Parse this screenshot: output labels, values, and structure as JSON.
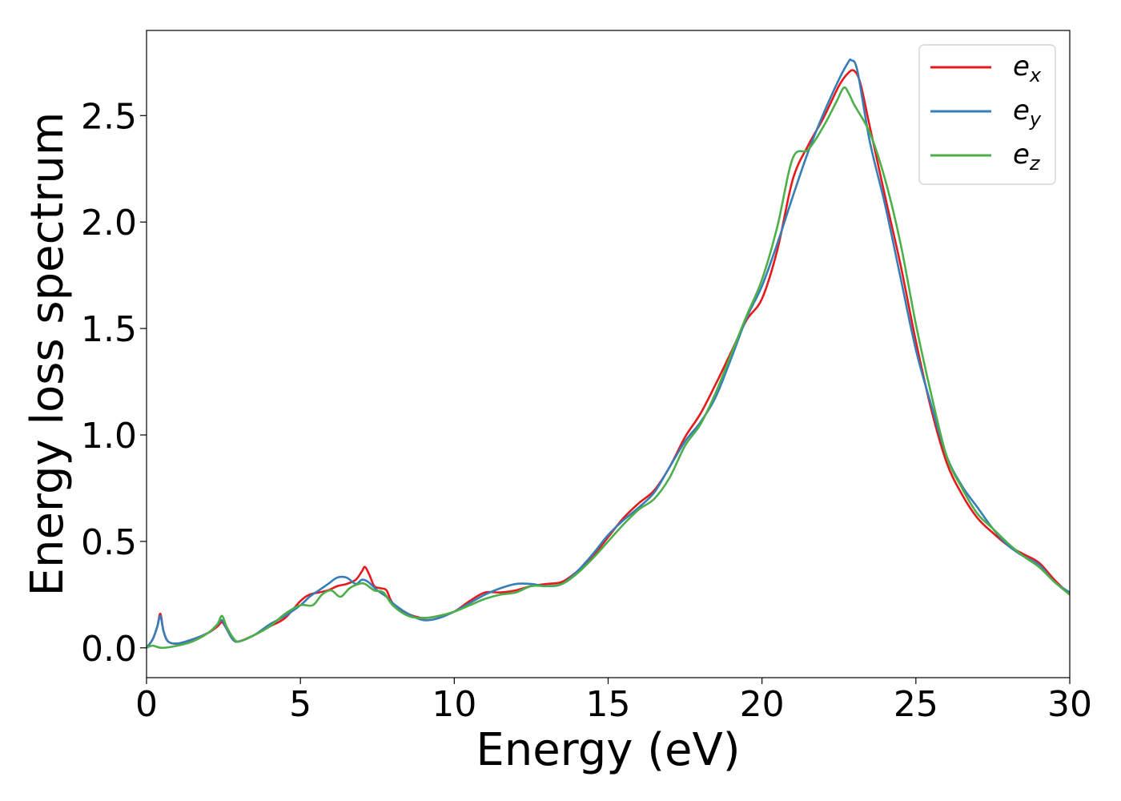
{
  "chart_data": {
    "type": "line",
    "title": "",
    "xlabel": "Energy (eV)",
    "ylabel": "Energy loss spectrum",
    "xlim": [
      0,
      30
    ],
    "ylim": [
      -0.14,
      2.9
    ],
    "xticks": [
      0,
      5,
      10,
      15,
      20,
      25,
      30
    ],
    "xtick_labels": [
      "0",
      "5",
      "10",
      "15",
      "20",
      "25",
      "30"
    ],
    "yticks": [
      0.0,
      0.5,
      1.0,
      1.5,
      2.0,
      2.5
    ],
    "ytick_labels": [
      "0.0",
      "0.5",
      "1.0",
      "1.5",
      "2.0",
      "2.5"
    ],
    "grid": false,
    "legend_position": "top-right",
    "series": [
      {
        "name": "e_x",
        "legend_base": "e",
        "legend_sub": "x",
        "color": "#e41a1c",
        "x": [
          0,
          0.2,
          0.35,
          0.45,
          0.55,
          0.7,
          1.0,
          1.5,
          2.0,
          2.3,
          2.45,
          2.6,
          2.8,
          3.0,
          3.5,
          4.0,
          4.5,
          5.0,
          5.3,
          5.6,
          5.9,
          6.2,
          6.5,
          6.8,
          7.0,
          7.1,
          7.25,
          7.4,
          7.6,
          7.8,
          8.0,
          8.5,
          9.0,
          9.5,
          10.0,
          10.5,
          11.0,
          11.5,
          12.0,
          12.5,
          13.0,
          13.5,
          14.0,
          14.5,
          15.0,
          15.5,
          16.0,
          16.5,
          17.0,
          17.5,
          18.0,
          18.5,
          19.0,
          19.5,
          20.0,
          20.5,
          21.0,
          21.5,
          22.0,
          22.5,
          22.8,
          23.0,
          23.2,
          23.5,
          24.0,
          24.5,
          25.0,
          25.5,
          26.0,
          26.5,
          27.0,
          27.5,
          28.0,
          28.5,
          29.0,
          29.5,
          30.0
        ],
        "y": [
          0.0,
          0.04,
          0.1,
          0.16,
          0.08,
          0.03,
          0.02,
          0.04,
          0.07,
          0.1,
          0.12,
          0.09,
          0.04,
          0.03,
          0.06,
          0.1,
          0.14,
          0.22,
          0.25,
          0.26,
          0.27,
          0.29,
          0.3,
          0.32,
          0.36,
          0.38,
          0.34,
          0.29,
          0.28,
          0.27,
          0.21,
          0.16,
          0.14,
          0.15,
          0.17,
          0.22,
          0.26,
          0.26,
          0.27,
          0.29,
          0.3,
          0.31,
          0.36,
          0.43,
          0.52,
          0.61,
          0.68,
          0.74,
          0.85,
          0.99,
          1.1,
          1.24,
          1.39,
          1.54,
          1.64,
          1.87,
          2.2,
          2.36,
          2.49,
          2.64,
          2.7,
          2.71,
          2.65,
          2.45,
          2.12,
          1.8,
          1.44,
          1.12,
          0.87,
          0.72,
          0.61,
          0.54,
          0.48,
          0.44,
          0.4,
          0.32,
          0.25
        ]
      },
      {
        "name": "e_y",
        "legend_base": "e",
        "legend_sub": "y",
        "color": "#377eb8",
        "x": [
          0,
          0.2,
          0.35,
          0.45,
          0.55,
          0.7,
          1.0,
          1.5,
          2.0,
          2.3,
          2.45,
          2.6,
          2.8,
          3.0,
          3.5,
          4.0,
          4.5,
          5.0,
          5.3,
          5.6,
          5.9,
          6.2,
          6.5,
          6.8,
          7.0,
          7.2,
          7.5,
          7.8,
          8.0,
          8.5,
          9.0,
          9.5,
          10.0,
          10.5,
          11.0,
          11.5,
          12.0,
          12.5,
          13.0,
          13.5,
          14.0,
          14.5,
          15.0,
          15.5,
          16.0,
          16.5,
          17.0,
          17.5,
          18.0,
          18.5,
          19.0,
          19.5,
          20.0,
          20.5,
          21.0,
          21.5,
          22.0,
          22.5,
          22.8,
          22.9,
          23.1,
          23.5,
          24.0,
          24.5,
          25.0,
          25.5,
          26.0,
          26.5,
          27.0,
          27.5,
          28.0,
          28.5,
          29.0,
          29.5,
          30.0
        ],
        "y": [
          0.0,
          0.04,
          0.1,
          0.15,
          0.08,
          0.03,
          0.02,
          0.04,
          0.07,
          0.11,
          0.13,
          0.09,
          0.04,
          0.03,
          0.06,
          0.11,
          0.15,
          0.2,
          0.24,
          0.27,
          0.3,
          0.33,
          0.33,
          0.3,
          0.32,
          0.31,
          0.27,
          0.24,
          0.21,
          0.16,
          0.13,
          0.14,
          0.17,
          0.21,
          0.25,
          0.28,
          0.3,
          0.3,
          0.29,
          0.3,
          0.36,
          0.44,
          0.53,
          0.6,
          0.66,
          0.73,
          0.85,
          0.97,
          1.06,
          1.18,
          1.36,
          1.55,
          1.7,
          1.9,
          2.12,
          2.33,
          2.51,
          2.67,
          2.75,
          2.76,
          2.71,
          2.38,
          2.08,
          1.74,
          1.4,
          1.14,
          0.9,
          0.76,
          0.66,
          0.56,
          0.48,
          0.43,
          0.39,
          0.31,
          0.26
        ]
      },
      {
        "name": "e_z",
        "legend_base": "e",
        "legend_sub": "z",
        "color": "#4daf4a",
        "x": [
          0,
          0.2,
          0.5,
          1.0,
          1.5,
          2.0,
          2.3,
          2.45,
          2.6,
          2.8,
          3.0,
          3.5,
          4.0,
          4.5,
          5.0,
          5.4,
          5.7,
          6.0,
          6.3,
          6.6,
          6.9,
          7.1,
          7.4,
          7.7,
          8.0,
          8.5,
          9.0,
          9.5,
          10.0,
          10.5,
          11.0,
          11.5,
          12.0,
          12.5,
          13.0,
          13.5,
          14.0,
          14.5,
          15.0,
          15.5,
          16.0,
          16.5,
          17.0,
          17.5,
          18.0,
          18.5,
          19.0,
          19.5,
          20.0,
          20.5,
          21.0,
          21.5,
          22.0,
          22.4,
          22.65,
          22.8,
          23.0,
          23.5,
          24.0,
          24.5,
          25.0,
          25.5,
          26.0,
          26.5,
          27.0,
          27.5,
          28.0,
          28.5,
          29.0,
          29.5,
          30.0
        ],
        "y": [
          0.0,
          0.01,
          0.0,
          0.01,
          0.03,
          0.07,
          0.11,
          0.15,
          0.1,
          0.05,
          0.03,
          0.06,
          0.1,
          0.16,
          0.2,
          0.2,
          0.25,
          0.27,
          0.24,
          0.28,
          0.3,
          0.3,
          0.27,
          0.26,
          0.2,
          0.15,
          0.14,
          0.15,
          0.17,
          0.2,
          0.23,
          0.25,
          0.26,
          0.29,
          0.29,
          0.3,
          0.35,
          0.42,
          0.5,
          0.58,
          0.65,
          0.7,
          0.8,
          0.95,
          1.05,
          1.2,
          1.38,
          1.56,
          1.73,
          1.98,
          2.3,
          2.34,
          2.45,
          2.56,
          2.63,
          2.61,
          2.55,
          2.42,
          2.2,
          1.9,
          1.52,
          1.19,
          0.9,
          0.75,
          0.63,
          0.56,
          0.49,
          0.43,
          0.38,
          0.31,
          0.25
        ]
      }
    ]
  }
}
